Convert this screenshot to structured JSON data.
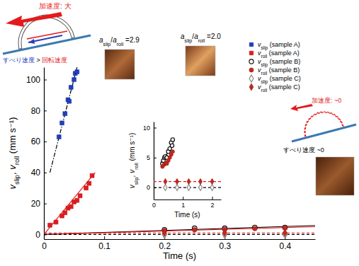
{
  "chart_data": [
    {
      "type": "scatter",
      "xlabel": "Time (s)",
      "ylabel": "vslip, vroll (mm s⁻¹)",
      "xlim": [
        0,
        0.45
      ],
      "ylim": [
        -3,
        108
      ],
      "xticks": [
        0,
        0.1,
        0.2,
        0.3,
        0.4
      ],
      "yticks": [
        0,
        20,
        40,
        60,
        80,
        100
      ],
      "legend": "top-right",
      "annotations": [
        "加速度: 大",
        "すべり速度 > 回転速度",
        "aslip/aroll =2.9",
        "aslip/aroll =2.0",
        "加速度: ~0",
        "すべり速度 ~0"
      ],
      "series": [
        {
          "name": "vslip (sample A)",
          "color": "#1f3fbf",
          "marker": "square",
          "x": [
            0.025,
            0.03,
            0.035,
            0.04,
            0.042,
            0.045,
            0.05,
            0.052,
            0.055
          ],
          "values": [
            63,
            72,
            78,
            87,
            86,
            95,
            100,
            104,
            105
          ]
        },
        {
          "name": "vroll (sample A)",
          "color": "#e41a1c",
          "marker": "square",
          "x": [
            0.01,
            0.02,
            0.03,
            0.035,
            0.04,
            0.045,
            0.05,
            0.055,
            0.06,
            0.07,
            0.075,
            0.08
          ],
          "values": [
            6,
            8,
            12,
            14,
            17,
            18,
            21,
            22,
            25,
            30,
            33,
            38
          ]
        },
        {
          "name": "vslip (sample B)",
          "color": "#000000",
          "marker": "circle-open",
          "x": [
            0.2,
            0.25,
            0.3,
            0.35,
            0.4
          ],
          "values": [
            3,
            4,
            4,
            4.5,
            4.5
          ]
        },
        {
          "name": "vroll (sample B)",
          "color": "#c0281e",
          "marker": "circle",
          "x": [
            0.2,
            0.25,
            0.3,
            0.35,
            0.4
          ],
          "values": [
            2.5,
            3,
            3.3,
            3.8,
            4.2
          ]
        },
        {
          "name": "vslip (sample C)",
          "color": "#808080",
          "marker": "diamond-open",
          "x": [
            0.2,
            0.3,
            0.4
          ],
          "values": [
            0,
            0,
            0
          ]
        },
        {
          "name": "vroll (sample C)",
          "color": "#c0281e",
          "marker": "diamond",
          "x": [
            0.2,
            0.3,
            0.4
          ],
          "values": [
            1,
            1,
            1
          ]
        },
        {
          "type": "line",
          "color": "#000000",
          "line_style": "dashdot",
          "x": [
            0.01,
            0.055
          ],
          "values": [
            40,
            108
          ]
        },
        {
          "type": "line",
          "color": "#e41a1c",
          "line_style": "solid",
          "x": [
            0,
            0.085
          ],
          "values": [
            0,
            40
          ]
        },
        {
          "type": "line",
          "color": "#000000",
          "line_style": "solid",
          "x": [
            0,
            0.45
          ],
          "values": [
            0,
            5.8
          ]
        },
        {
          "type": "line",
          "color": "#e41a1c",
          "line_style": "solid",
          "x": [
            0,
            0.45
          ],
          "values": [
            0,
            5
          ]
        },
        {
          "type": "line",
          "color": "#000000",
          "line_style": "dashed",
          "x": [
            0,
            0.45
          ],
          "values": [
            0,
            0
          ]
        },
        {
          "type": "line",
          "color": "#e41a1c",
          "line_style": "dashed",
          "x": [
            0,
            0.45
          ],
          "values": [
            1,
            1
          ]
        }
      ]
    },
    {
      "type": "scatter",
      "xlabel": "Time (s)",
      "ylabel": "vslip, vroll (mm s⁻¹)",
      "xlim": [
        0,
        2.3
      ],
      "ylim": [
        -2,
        11
      ],
      "xticks": [
        0,
        1,
        2
      ],
      "yticks": [
        0,
        5,
        10
      ],
      "series": [
        {
          "color": "#000000",
          "marker": "circle-open",
          "x": [
            0.3,
            0.33,
            0.37,
            0.4,
            0.45,
            0.5,
            0.55,
            0.6,
            0.63,
            0.65
          ],
          "values": [
            4,
            4.5,
            5,
            5.2,
            5,
            6,
            6.5,
            7.5,
            7,
            8
          ]
        },
        {
          "color": "#c0281e",
          "marker": "circle",
          "x": [
            0.3,
            0.35,
            0.4,
            0.45,
            0.5,
            0.55,
            0.6,
            0.65
          ],
          "values": [
            3.5,
            3.8,
            4,
            4,
            4.5,
            5,
            5.5,
            6
          ]
        },
        {
          "color": "#808080",
          "marker": "diamond-open",
          "x": [
            0.4,
            0.8,
            1.2,
            1.6,
            2.0
          ],
          "values": [
            0,
            0,
            0,
            0,
            0
          ]
        },
        {
          "color": "#c0281e",
          "marker": "diamond",
          "x": [
            0.4,
            0.8,
            1.2,
            1.6,
            2.0
          ],
          "values": [
            1,
            1,
            1,
            1,
            1
          ]
        },
        {
          "type": "line",
          "color": "#000000",
          "line_style": "solid",
          "x": [
            0.28,
            0.68
          ],
          "values": [
            3.5,
            8.3
          ]
        },
        {
          "type": "line",
          "color": "#e41a1c",
          "line_style": "solid",
          "x": [
            0.28,
            0.68
          ],
          "values": [
            3.2,
            6.3
          ]
        },
        {
          "type": "line",
          "color": "#000000",
          "line_style": "dashed",
          "x": [
            0,
            2.3
          ],
          "values": [
            0,
            0
          ]
        },
        {
          "type": "line",
          "color": "#e41a1c",
          "line_style": "dashed",
          "x": [
            0,
            2.3
          ],
          "values": [
            1,
            1
          ]
        }
      ]
    }
  ]
}
